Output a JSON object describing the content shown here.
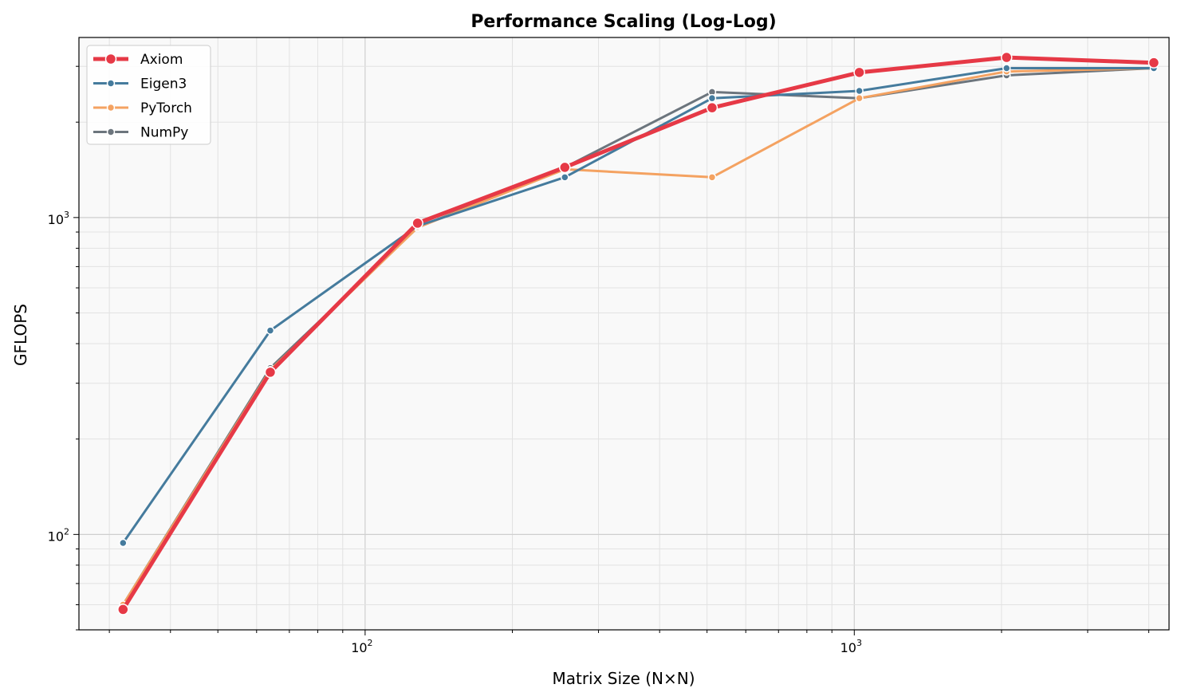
{
  "chart_data": {
    "type": "line",
    "title": "Performance Scaling (Log-Log)",
    "xlabel": "Matrix Size (N×N)",
    "ylabel": "GFLOPS",
    "x_scale": "log",
    "y_scale": "log",
    "xlim": [
      26,
      4400
    ],
    "ylim": [
      50,
      3700
    ],
    "x_tick_labels": [
      {
        "value": 100,
        "base": "10",
        "exp": "2"
      },
      {
        "value": 1000,
        "base": "10",
        "exp": "3"
      }
    ],
    "y_tick_labels": [
      {
        "value": 100,
        "base": "10",
        "exp": "2"
      },
      {
        "value": 1000,
        "base": "10",
        "exp": "3"
      }
    ],
    "grid": true,
    "legend_position": "top-left",
    "x": [
      32,
      64,
      128,
      256,
      512,
      1024,
      2048,
      4096
    ],
    "series": [
      {
        "name": "Axiom",
        "color": "#e63946",
        "values": [
          58,
          325,
          960,
          1440,
          2220,
          2870,
          3200,
          3080
        ]
      },
      {
        "name": "Eigen3",
        "color": "#457b9d",
        "values": [
          94,
          440,
          940,
          1340,
          2380,
          2510,
          2960,
          2960
        ]
      },
      {
        "name": "PyTorch",
        "color": "#f4a261",
        "values": [
          60,
          330,
          930,
          1420,
          1340,
          2380,
          2890,
          2960
        ]
      },
      {
        "name": "NumPy",
        "color": "#6c757d",
        "values": [
          60,
          335,
          930,
          1440,
          2490,
          2380,
          2810,
          2960
        ]
      }
    ]
  }
}
